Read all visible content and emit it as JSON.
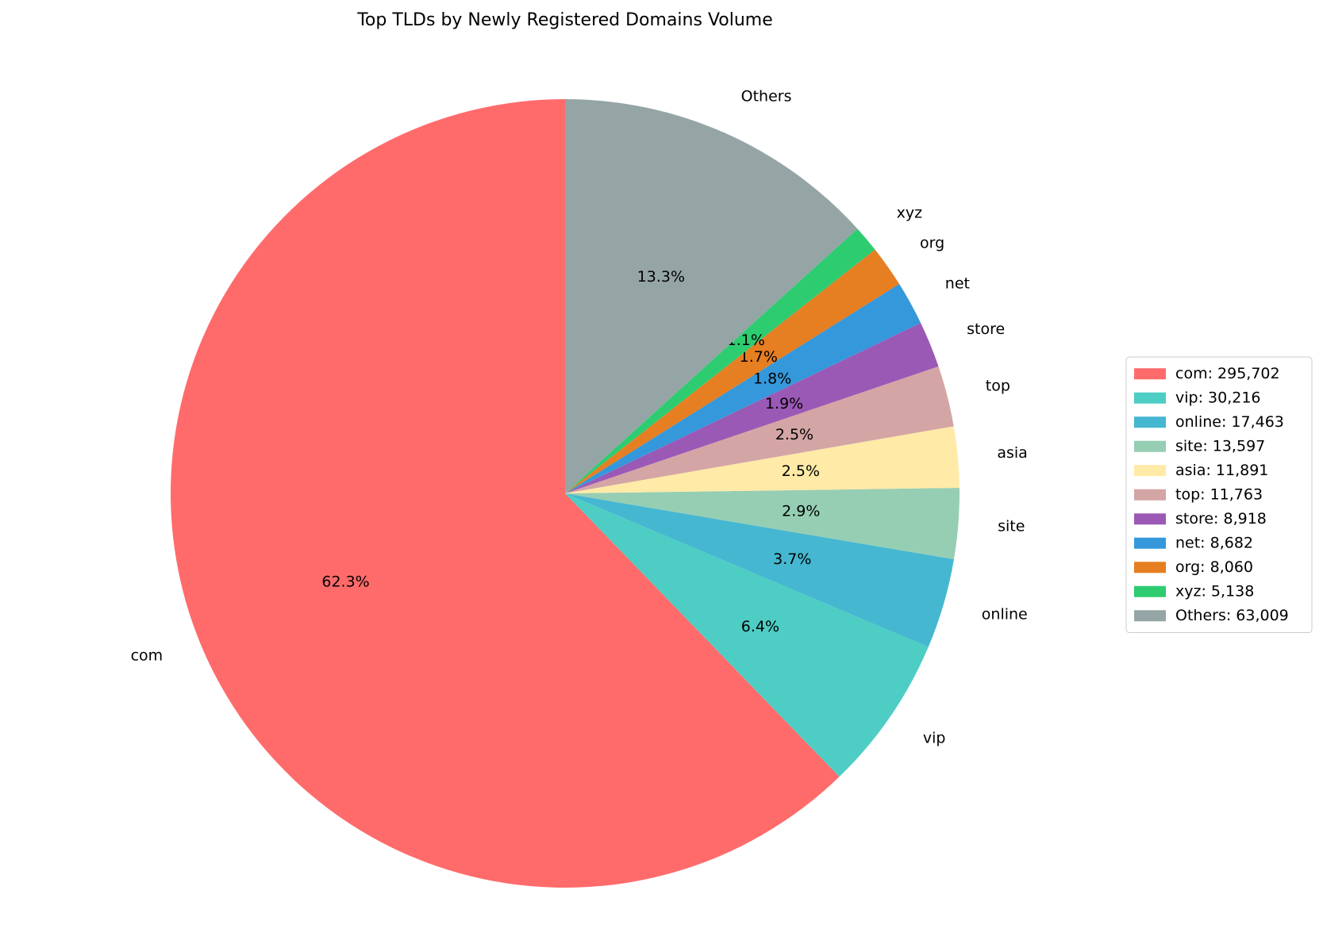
{
  "chart_data": {
    "type": "pie",
    "title": "Top TLDs by Newly Registered Domains Volume",
    "categories": [
      "com",
      "vip",
      "online",
      "site",
      "asia",
      "top",
      "store",
      "net",
      "org",
      "xyz",
      "Others"
    ],
    "values": [
      62.3,
      6.4,
      3.7,
      2.9,
      2.5,
      2.5,
      1.9,
      1.8,
      1.7,
      1.1,
      13.3
    ],
    "value_labels": [
      "62.3%",
      "6.4%",
      "3.7%",
      "2.9%",
      "2.5%",
      "2.5%",
      "1.9%",
      "1.8%",
      "1.7%",
      "1.1%",
      "13.3%"
    ],
    "colors": [
      "#ff6b6b",
      "#4ecdc4",
      "#45b7d1",
      "#96ceb4",
      "#ffeaa7",
      "#d4a5a5",
      "#9b59b6",
      "#3498db",
      "#e67e22",
      "#2ecc71",
      "#95a5a6"
    ],
    "legend_labels": [
      "com: 295,702",
      "vip: 30,216",
      "online: 17,463",
      "site: 13,597",
      "asia: 11,891",
      "top: 11,763",
      "store: 8,918",
      "net: 8,682",
      "org: 8,060",
      "xyz: 5,138",
      "Others: 63,009"
    ],
    "legend_position": "right"
  }
}
